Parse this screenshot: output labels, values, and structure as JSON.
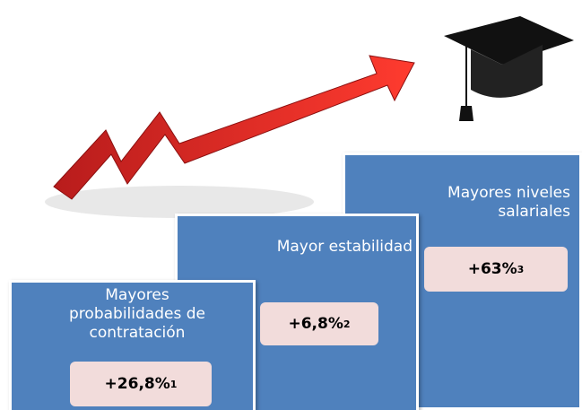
{
  "steps": [
    {
      "label": "Mayores probabilidades de contratación",
      "value": "+26,8%",
      "note": "1"
    },
    {
      "label": "Mayor estabilidad",
      "value": "+6,8%",
      "note": "2"
    },
    {
      "label": "Mayores niveles salariales",
      "value": "+63%",
      "note": "3"
    }
  ]
}
